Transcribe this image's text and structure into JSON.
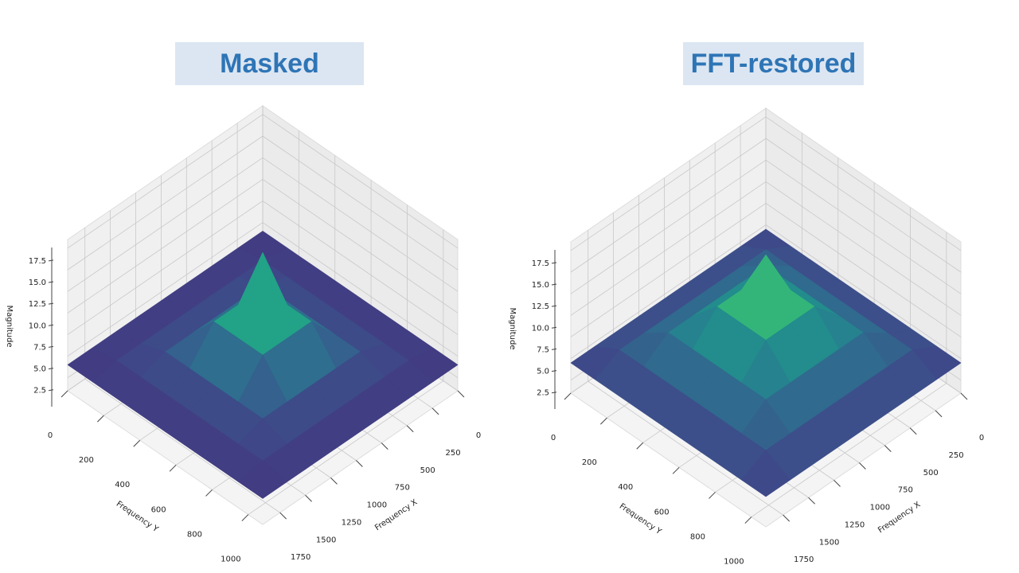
{
  "chart_data": [
    {
      "type": "surface",
      "title": "Masked",
      "xlabel": "Frequency X",
      "ylabel": "Frequency Y",
      "zlabel": "Magnitude",
      "colormap": "viridis",
      "x": [
        0,
        240,
        480,
        720,
        960,
        1200,
        1440,
        1680,
        1920
      ],
      "y": [
        0,
        135,
        270,
        405,
        540,
        675,
        810,
        945,
        1080
      ],
      "z": [
        [
          4,
          4,
          4,
          4,
          4,
          4,
          4,
          4,
          4
        ],
        [
          4,
          4.5,
          4.5,
          4.5,
          4.5,
          4.5,
          4.5,
          4.5,
          4
        ],
        [
          4,
          4.5,
          5.5,
          5.5,
          5.5,
          5.5,
          5.5,
          4.5,
          4
        ],
        [
          4,
          4.5,
          5.5,
          9,
          9,
          9,
          5.5,
          4.5,
          4
        ],
        [
          4,
          4.5,
          5.5,
          9,
          17,
          9,
          5.5,
          4.5,
          4
        ],
        [
          4,
          4.5,
          5.5,
          9,
          9,
          9,
          5.5,
          4.5,
          4
        ],
        [
          4,
          4.5,
          5.5,
          5.5,
          5.5,
          5.5,
          5.5,
          4.5,
          4
        ],
        [
          4,
          4.5,
          4.5,
          4.5,
          4.5,
          4.5,
          4.5,
          4.5,
          4
        ],
        [
          4,
          4,
          4,
          4,
          4,
          4,
          4,
          4,
          4
        ]
      ],
      "xlim": [
        0,
        1920
      ],
      "ylim": [
        0,
        1080
      ],
      "zlim": [
        1,
        18.5
      ],
      "xticks": [
        0,
        250,
        500,
        750,
        1000,
        1250,
        1500,
        1750
      ],
      "yticks": [
        0,
        200,
        400,
        600,
        800,
        1000
      ],
      "zticks": [
        2.5,
        {
          "value": 5,
          "label": "5.0"
        },
        7.5,
        {
          "value": 10,
          "label": "10.0"
        },
        12.5,
        {
          "value": 15,
          "label": "15.0"
        },
        17.5
      ],
      "grid": true
    },
    {
      "type": "surface",
      "title": "FFT-restored",
      "xlabel": "Frequency X",
      "ylabel": "Frequency Y",
      "zlabel": "Magnitude",
      "colormap": "viridis",
      "x": [
        0,
        240,
        480,
        720,
        960,
        1200,
        1440,
        1680,
        1920
      ],
      "y": [
        0,
        135,
        270,
        405,
        540,
        675,
        810,
        945,
        1080
      ],
      "z": [
        [
          4.5,
          4.5,
          4.5,
          4.5,
          4.5,
          4.5,
          4.5,
          4.5,
          4.5
        ],
        [
          4.5,
          6,
          6,
          6,
          6,
          6,
          6,
          6,
          4.5
        ],
        [
          4.5,
          6,
          8,
          8,
          8,
          8,
          8,
          6,
          4.5
        ],
        [
          4.5,
          6,
          8,
          11,
          11,
          11,
          8,
          6,
          4.5
        ],
        [
          4.5,
          6,
          8,
          11,
          17,
          11,
          8,
          6,
          4.5
        ],
        [
          4.5,
          6,
          8,
          11,
          11,
          11,
          8,
          6,
          4.5
        ],
        [
          4.5,
          6,
          8,
          8,
          8,
          8,
          8,
          6,
          4.5
        ],
        [
          4.5,
          6,
          6,
          6,
          6,
          6,
          6,
          6,
          4.5
        ],
        [
          4.5,
          4.5,
          4.5,
          4.5,
          4.5,
          4.5,
          4.5,
          4.5,
          4.5
        ]
      ],
      "xlim": [
        0,
        1920
      ],
      "ylim": [
        0,
        1080
      ],
      "zlim": [
        1,
        18.5
      ],
      "xticks": [
        0,
        250,
        500,
        750,
        1000,
        1250,
        1500,
        1750
      ],
      "yticks": [
        0,
        200,
        400,
        600,
        800,
        1000
      ],
      "zticks": [
        2.5,
        {
          "value": 5,
          "label": "5.0"
        },
        7.5,
        {
          "value": 10,
          "label": "10.0"
        },
        12.5,
        {
          "value": 15,
          "label": "15.0"
        },
        17.5
      ],
      "grid": true
    }
  ]
}
